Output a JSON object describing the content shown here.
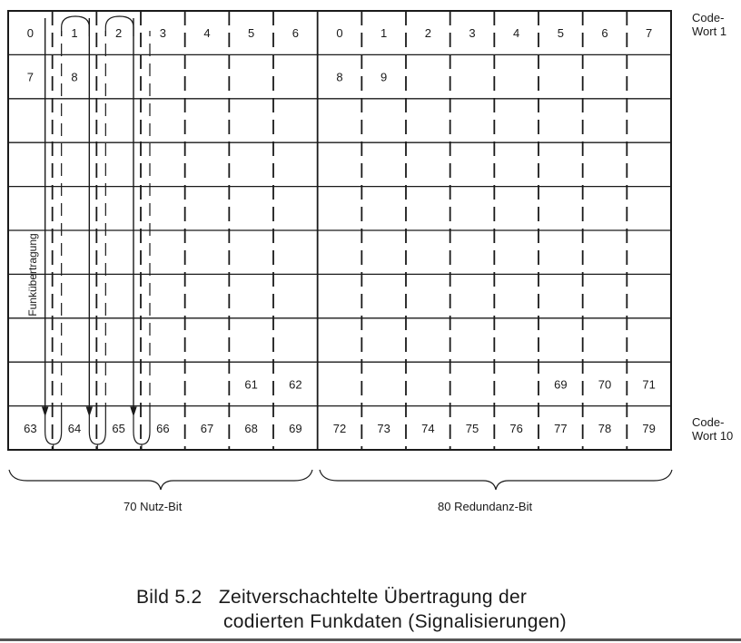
{
  "diagram": {
    "cells": [
      {
        "row": 0,
        "col": 0,
        "text": "0"
      },
      {
        "row": 0,
        "col": 1,
        "text": "1"
      },
      {
        "row": 0,
        "col": 2,
        "text": "2"
      },
      {
        "row": 0,
        "col": 3,
        "text": "3"
      },
      {
        "row": 0,
        "col": 4,
        "text": "4"
      },
      {
        "row": 0,
        "col": 5,
        "text": "5"
      },
      {
        "row": 0,
        "col": 6,
        "text": "6"
      },
      {
        "row": 0,
        "col": 7,
        "text": "0"
      },
      {
        "row": 0,
        "col": 8,
        "text": "1"
      },
      {
        "row": 0,
        "col": 9,
        "text": "2"
      },
      {
        "row": 0,
        "col": 10,
        "text": "3"
      },
      {
        "row": 0,
        "col": 11,
        "text": "4"
      },
      {
        "row": 0,
        "col": 12,
        "text": "5"
      },
      {
        "row": 0,
        "col": 13,
        "text": "6"
      },
      {
        "row": 0,
        "col": 14,
        "text": "7"
      },
      {
        "row": 1,
        "col": 0,
        "text": "7"
      },
      {
        "row": 1,
        "col": 1,
        "text": "8"
      },
      {
        "row": 1,
        "col": 7,
        "text": "8"
      },
      {
        "row": 1,
        "col": 8,
        "text": "9"
      },
      {
        "row": 8,
        "col": 5,
        "text": "61"
      },
      {
        "row": 8,
        "col": 6,
        "text": "62"
      },
      {
        "row": 8,
        "col": 12,
        "text": "69"
      },
      {
        "row": 8,
        "col": 13,
        "text": "70"
      },
      {
        "row": 8,
        "col": 14,
        "text": "71"
      },
      {
        "row": 9,
        "col": 0,
        "text": "63"
      },
      {
        "row": 9,
        "col": 1,
        "text": "64"
      },
      {
        "row": 9,
        "col": 2,
        "text": "65"
      },
      {
        "row": 9,
        "col": 3,
        "text": "66"
      },
      {
        "row": 9,
        "col": 4,
        "text": "67"
      },
      {
        "row": 9,
        "col": 5,
        "text": "68"
      },
      {
        "row": 9,
        "col": 6,
        "text": "69"
      },
      {
        "row": 9,
        "col": 7,
        "text": "72"
      },
      {
        "row": 9,
        "col": 8,
        "text": "73"
      },
      {
        "row": 9,
        "col": 9,
        "text": "74"
      },
      {
        "row": 9,
        "col": 10,
        "text": "75"
      },
      {
        "row": 9,
        "col": 11,
        "text": "76"
      },
      {
        "row": 9,
        "col": 12,
        "text": "77"
      },
      {
        "row": 9,
        "col": 13,
        "text": "78"
      },
      {
        "row": 9,
        "col": 14,
        "text": "79"
      }
    ],
    "codeword_first": [
      "Code-",
      "Wort 1"
    ],
    "codeword_last": [
      "Code-",
      "Wort 10"
    ],
    "transmission_label": "Funkübertragung",
    "useful_bits_label": "70 Nutz-Bit",
    "redundancy_bits_label": "80 Redundanz-Bit"
  },
  "caption": {
    "number": "Bild 5.2",
    "line1": "Zeitverschachtelte Übertragung der",
    "line2": "codierten Funkdaten (Signalisierungen)"
  }
}
